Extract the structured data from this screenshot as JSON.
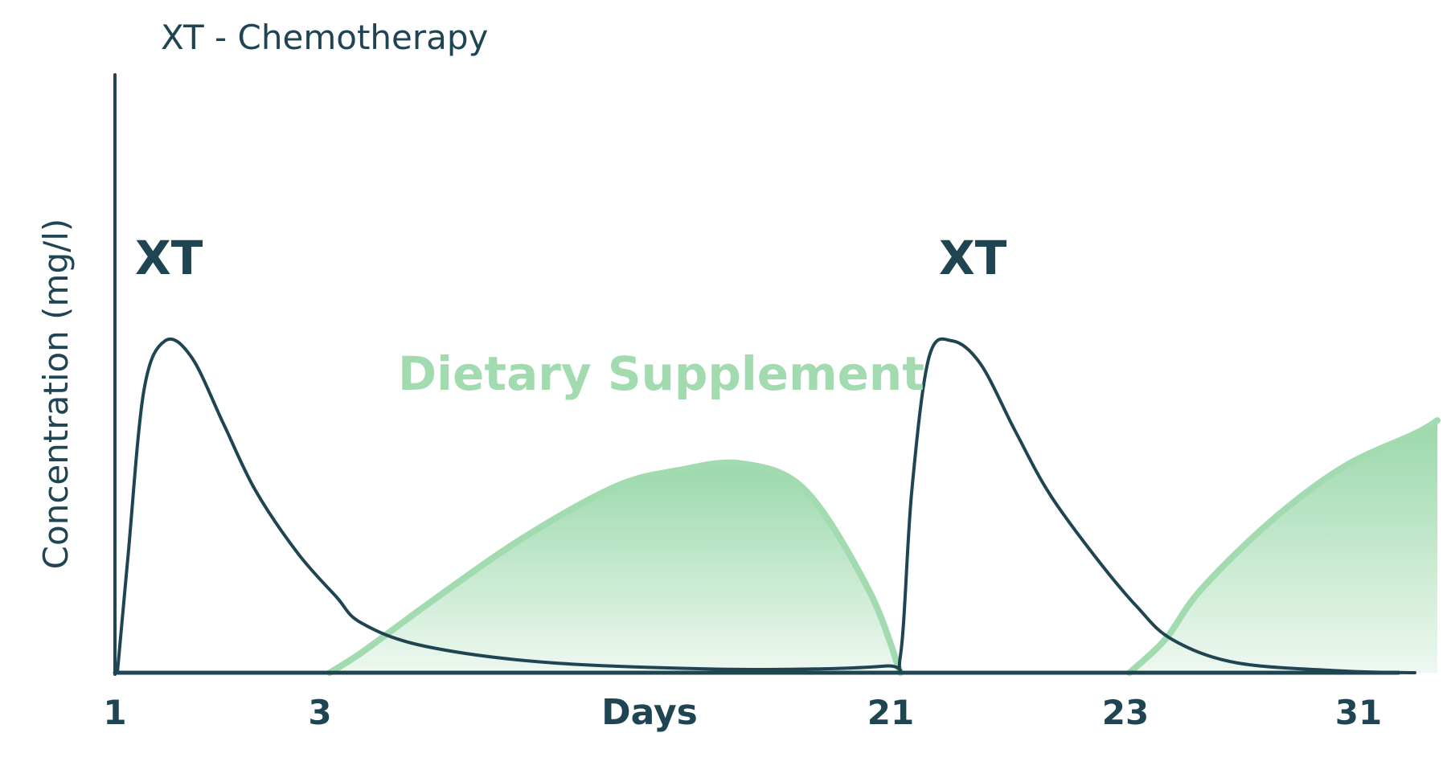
{
  "colors": {
    "chemo": "#1f4452",
    "supplement": "#a3dbb0",
    "supplement_fill_top": "#9ad8aa",
    "supplement_fill_bottom": "#eef8f0",
    "text": "#1f4452",
    "background": "#ffffff"
  },
  "chart_data": {
    "type": "area",
    "title": "XT - Chemotherapy",
    "xlabel": "Days",
    "ylabel": "Concentration (mg/l)",
    "x_tick_labels": [
      "1",
      "3",
      "Days",
      "21",
      "23",
      "31"
    ],
    "y_tick_labels": [],
    "grid": false,
    "annotations": [
      "XT",
      "XT",
      "Dietary Supplement"
    ],
    "series": [
      {
        "label": "XT",
        "kind": "line",
        "x": [
          1,
          1.1,
          1.25,
          1.45,
          1.7,
          2.0,
          2.3,
          2.7,
          3.2,
          4.0,
          6,
          10,
          16,
          20.5,
          21,
          21.1,
          21.25,
          21.45,
          21.7,
          22.0,
          22.3,
          22.7,
          23.2,
          24.2,
          26,
          29,
          31
        ],
        "values": [
          0,
          0.35,
          0.85,
          1.0,
          0.95,
          0.75,
          0.55,
          0.36,
          0.23,
          0.15,
          0.08,
          0.03,
          0.01,
          0.02,
          0.05,
          0.55,
          0.95,
          1.0,
          0.93,
          0.73,
          0.54,
          0.35,
          0.2,
          0.1,
          0.03,
          0.005,
          0
        ]
      },
      {
        "label": "Dietary Supplement",
        "kind": "area",
        "x": [
          3,
          4,
          6,
          9,
          12,
          14,
          16,
          18,
          20,
          21,
          22,
          23,
          24,
          25,
          27,
          29,
          31,
          32
        ],
        "values": [
          0,
          0.06,
          0.2,
          0.4,
          0.56,
          0.61,
          0.63,
          0.55,
          0.25,
          0,
          0,
          0,
          0.1,
          0.25,
          0.46,
          0.62,
          0.72,
          0.76
        ]
      }
    ]
  }
}
